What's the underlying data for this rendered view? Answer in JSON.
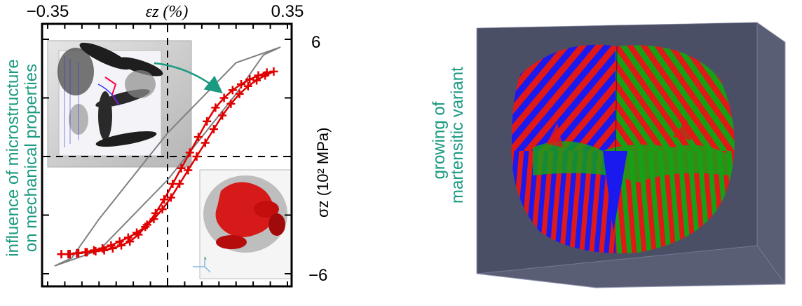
{
  "left_panel": {
    "caption_lines": [
      "influence of microstructure",
      "on mechanical properties"
    ]
  },
  "right_panel": {
    "caption_lines": [
      "growing of",
      "martensitic variant"
    ]
  },
  "colors": {
    "caption": "#1a9a80",
    "data_series": "#e00000",
    "reference_curve": "#808080",
    "arrow": "#1a9a80",
    "box_background": "#5a5e75"
  },
  "icons": [
    "microstructure-inset-top",
    "microstructure-inset-bottom",
    "martensite-cube-render"
  ],
  "chart_data": {
    "type": "line",
    "title": "",
    "xlabel": "εz (%)",
    "ylabel": "σz (10² MPa)",
    "xlim": [
      -0.35,
      0.35
    ],
    "ylim": [
      -6,
      6
    ],
    "x_ticks": [
      "−0.35",
      "0.35"
    ],
    "y_ticks": [
      "6",
      "−6"
    ],
    "grid": false,
    "reference_lines": {
      "x": 0,
      "y": 0,
      "style": "dashed"
    },
    "series": [
      {
        "marker": "plus",
        "x": [
          -0.31,
          -0.285,
          -0.26,
          -0.235,
          -0.21,
          -0.185,
          -0.16,
          -0.135,
          -0.11,
          -0.085,
          -0.06,
          -0.035,
          -0.01,
          0.015,
          0.04,
          0.065,
          0.09,
          0.115,
          0.14,
          0.165,
          0.19,
          0.215,
          0.24,
          0.265,
          0.29,
          0.31,
          0.285,
          0.26,
          0.235,
          0.21,
          0.185,
          0.16,
          0.135,
          0.11,
          0.085,
          0.06,
          0.035,
          0.01,
          -0.015,
          -0.04,
          -0.065,
          -0.09,
          -0.115,
          -0.14,
          -0.165,
          -0.19,
          -0.215,
          -0.24,
          -0.265,
          -0.29,
          -0.31
        ],
        "y": [
          -5.0,
          -5.0,
          -4.95,
          -4.9,
          -4.85,
          -4.8,
          -4.7,
          -4.55,
          -4.35,
          -4.0,
          -3.5,
          -2.9,
          -2.2,
          -1.4,
          -0.6,
          0.2,
          1.0,
          1.8,
          2.5,
          3.0,
          3.4,
          3.7,
          3.95,
          4.15,
          4.3,
          4.35,
          4.15,
          3.9,
          3.6,
          3.2,
          2.7,
          2.1,
          1.4,
          0.7,
          0.0,
          -0.7,
          -1.4,
          -2.1,
          -2.7,
          -3.2,
          -3.6,
          -3.9,
          -4.15,
          -4.35,
          -4.55,
          -4.7,
          -4.8,
          -4.9,
          -4.95,
          -5.0,
          -5.0
        ]
      },
      {
        "marker": "none",
        "x": [
          -0.33,
          -0.2,
          0.0,
          0.2,
          0.28,
          0.33,
          0.33,
          0.2,
          0.0,
          -0.2,
          -0.28,
          -0.33
        ],
        "y": [
          -5.6,
          -4.8,
          -1.2,
          3.2,
          5.2,
          5.6,
          5.6,
          4.8,
          1.2,
          -3.2,
          -5.2,
          -5.6
        ]
      }
    ]
  }
}
